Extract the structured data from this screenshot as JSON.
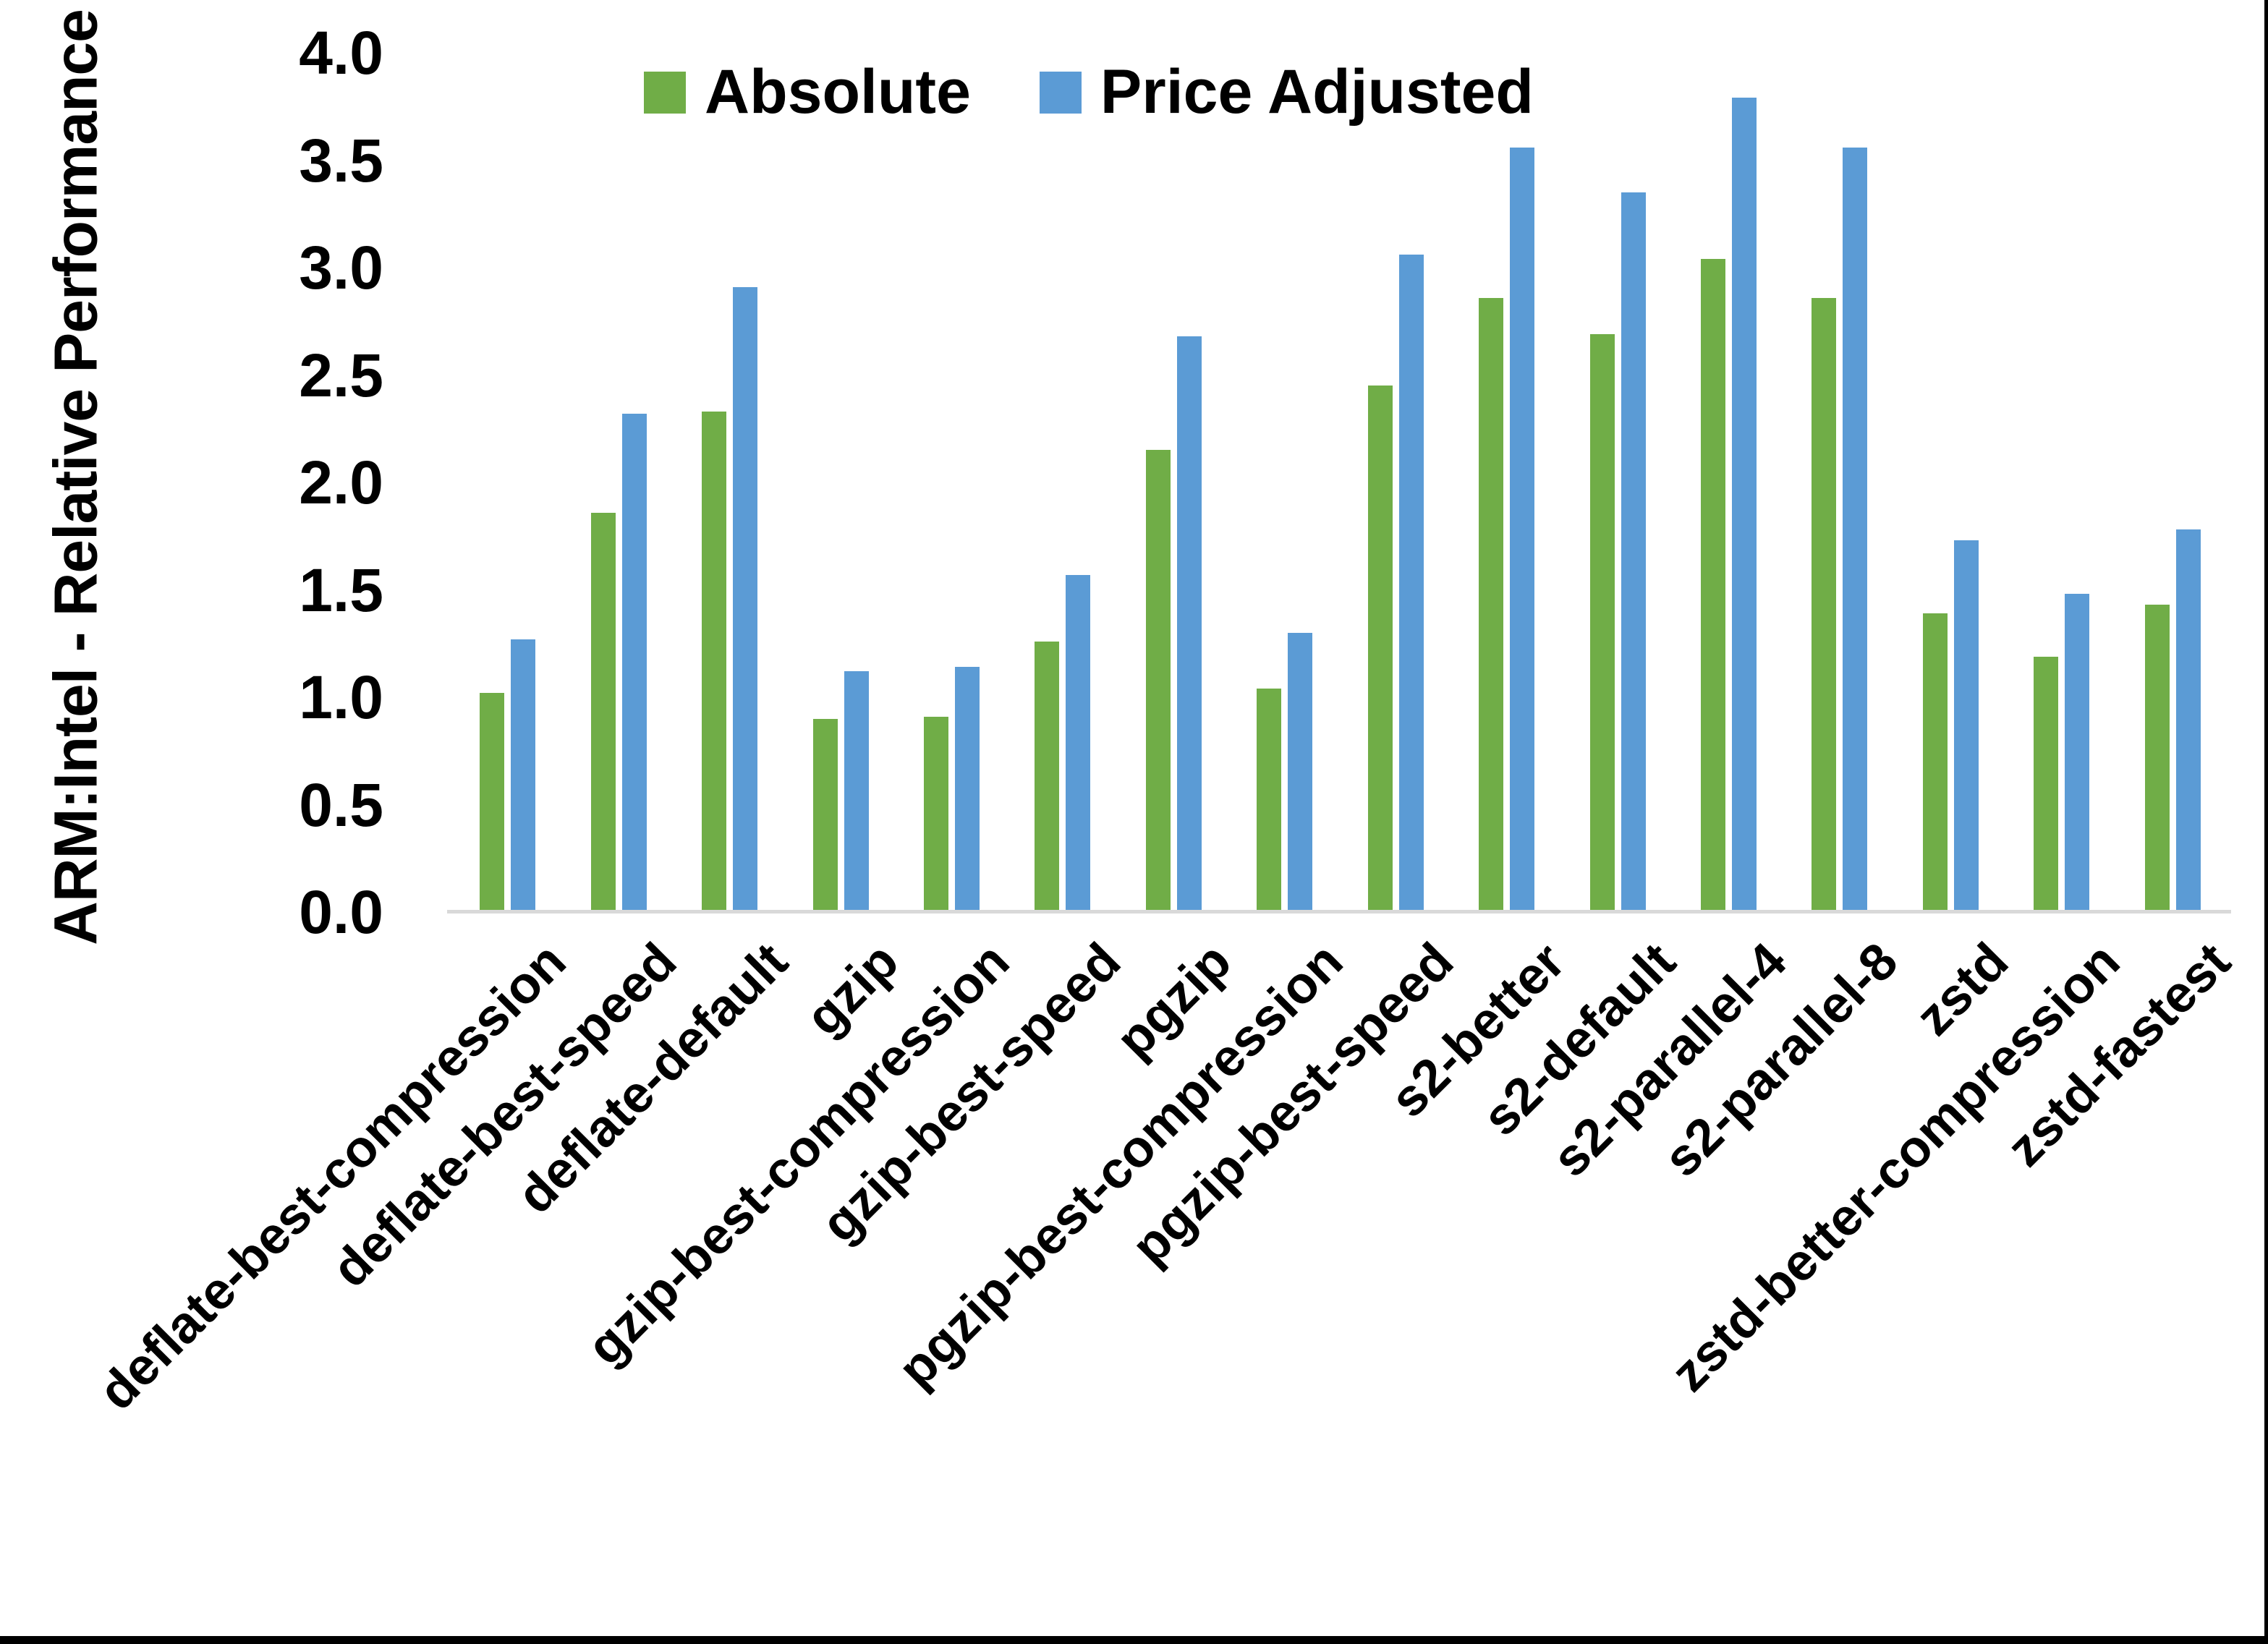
{
  "frame": {
    "background": "#ffffff",
    "border_color": "#000000"
  },
  "chart_data": {
    "type": "bar",
    "title": "",
    "xlabel": "",
    "ylabel": "ARM:Intel - Relative Performance",
    "ylim": [
      0.0,
      4.0
    ],
    "ytick_step": 0.5,
    "ytick_labels": [
      "4.0",
      "3.5",
      "3.0",
      "2.5",
      "2.0",
      "1.5",
      "1.0",
      "0.5",
      "0.0"
    ],
    "grid": false,
    "legend_position": "top-center",
    "axis_line_color": "#D9D9D9",
    "text_color": "#000000",
    "categories": [
      "deflate-best-compression",
      "deflate-best-speed",
      "deflate-default",
      "gzip",
      "gzip-best-compression",
      "gzip-best-speed",
      "pgzip",
      "pgzip-best-compression",
      "pgzip-best-speed",
      "s2-better",
      "s2-default",
      "s2-parallel-4",
      "s2-parallel-8",
      "zstd",
      "zstd-better-compression",
      "zstd-fastest"
    ],
    "series": [
      {
        "name": "Absolute",
        "color": "#70AD47",
        "values": [
          1.02,
          1.86,
          2.33,
          0.9,
          0.91,
          1.26,
          2.15,
          1.04,
          2.45,
          2.86,
          2.69,
          3.04,
          2.86,
          1.39,
          1.19,
          1.43
        ]
      },
      {
        "name": "Price Adjusted",
        "color": "#5B9BD5",
        "values": [
          1.27,
          2.32,
          2.91,
          1.12,
          1.14,
          1.57,
          2.68,
          1.3,
          3.06,
          3.56,
          3.35,
          3.79,
          3.56,
          1.73,
          1.48,
          1.78
        ]
      }
    ]
  }
}
